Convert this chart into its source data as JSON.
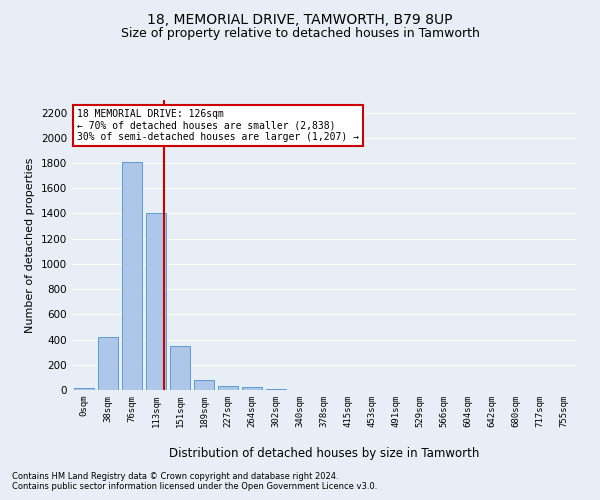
{
  "title": "18, MEMORIAL DRIVE, TAMWORTH, B79 8UP",
  "subtitle": "Size of property relative to detached houses in Tamworth",
  "xlabel": "Distribution of detached houses by size in Tamworth",
  "ylabel": "Number of detached properties",
  "footnote1": "Contains HM Land Registry data © Crown copyright and database right 2024.",
  "footnote2": "Contains public sector information licensed under the Open Government Licence v3.0.",
  "annotation_line1": "18 MEMORIAL DRIVE: 126sqm",
  "annotation_line2": "← 70% of detached houses are smaller (2,838)",
  "annotation_line3": "30% of semi-detached houses are larger (1,207) →",
  "bin_labels": [
    "0sqm",
    "38sqm",
    "76sqm",
    "113sqm",
    "151sqm",
    "189sqm",
    "227sqm",
    "264sqm",
    "302sqm",
    "340sqm",
    "378sqm",
    "415sqm",
    "453sqm",
    "491sqm",
    "529sqm",
    "566sqm",
    "604sqm",
    "642sqm",
    "680sqm",
    "717sqm",
    "755sqm"
  ],
  "bar_values": [
    15,
    420,
    1810,
    1400,
    350,
    80,
    30,
    25,
    5,
    0,
    0,
    0,
    0,
    0,
    0,
    0,
    0,
    0,
    0,
    0,
    0
  ],
  "bar_color": "#aec6e8",
  "bar_edge_color": "#5b9bd5",
  "vline_color": "#cc0000",
  "vline_x": 3.32,
  "ylim": [
    0,
    2300
  ],
  "yticks": [
    0,
    200,
    400,
    600,
    800,
    1000,
    1200,
    1400,
    1600,
    1800,
    2000,
    2200
  ],
  "annotation_box_color": "#ffffff",
  "annotation_box_edge": "#cc0000",
  "bg_color": "#e8eef5",
  "grid_color": "#ffffff",
  "title_fontsize": 10,
  "subtitle_fontsize": 9,
  "figsize": [
    6.0,
    5.0
  ],
  "dpi": 100
}
